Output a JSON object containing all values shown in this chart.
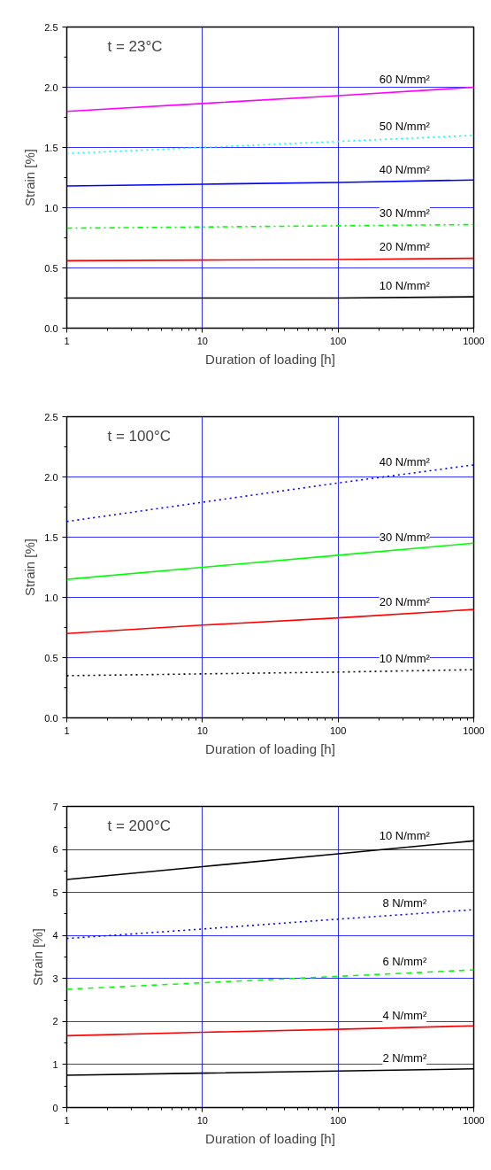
{
  "chart_data": [
    {
      "type": "line",
      "xlabel": "Duration of loading [h]",
      "ylabel": "Strain [%]",
      "annotations": [
        "t = 23°C"
      ],
      "log": "x",
      "grid": true,
      "x": [
        1,
        10,
        100,
        1000
      ],
      "xlim": [
        1,
        1000
      ],
      "xticks": [
        1,
        10,
        100,
        1000
      ],
      "ylim": [
        0,
        2.5
      ],
      "yticks": [
        {
          "value": 0,
          "label": "0.0"
        },
        {
          "value": 0.5,
          "label": "0.5"
        },
        {
          "value": 1,
          "label": "1.0"
        },
        {
          "value": 1.5,
          "label": "1.5"
        },
        {
          "value": 2,
          "label": "2.0"
        },
        {
          "value": 2.5,
          "label": "2.5"
        }
      ],
      "series": [
        {
          "name": "60 N/mm²",
          "color": "#ff00ff",
          "line_style": "solid",
          "values": [
            1.8,
            1.865,
            1.93,
            2.0
          ]
        },
        {
          "name": "50 N/mm²",
          "color": "#00ffff",
          "line_style": "dotted",
          "values": [
            1.45,
            1.5,
            1.55,
            1.6
          ]
        },
        {
          "name": "40 N/mm²",
          "color": "#0000ff",
          "line_style": "solid",
          "values": [
            1.18,
            1.195,
            1.21,
            1.23
          ]
        },
        {
          "name": "30 N/mm²",
          "color": "#00ff00",
          "line_style": "dashdot",
          "values": [
            0.83,
            0.84,
            0.85,
            0.86
          ]
        },
        {
          "name": "20 N/mm²",
          "color": "#ff0000",
          "line_style": "solid",
          "values": [
            0.56,
            0.565,
            0.57,
            0.58
          ]
        },
        {
          "name": "10 N/mm²",
          "color": "#000000",
          "line_style": "solid",
          "values": [
            0.25,
            0.25,
            0.25,
            0.26
          ]
        }
      ]
    },
    {
      "type": "line",
      "xlabel": "Duration of loading [h]",
      "ylabel": "Strain [%]",
      "annotations": [
        "t = 100°C"
      ],
      "log": "x",
      "grid": true,
      "x": [
        1,
        10,
        100,
        1000
      ],
      "xlim": [
        1,
        1000
      ],
      "xticks": [
        1,
        10,
        100,
        1000
      ],
      "ylim": [
        0,
        2.5
      ],
      "yticks": [
        {
          "value": 0,
          "label": "0.0"
        },
        {
          "value": 0.5,
          "label": "0.5"
        },
        {
          "value": 1,
          "label": "1.0"
        },
        {
          "value": 1.5,
          "label": "1.5"
        },
        {
          "value": 2,
          "label": "2.0"
        },
        {
          "value": 2.5,
          "label": "2.5"
        }
      ],
      "series": [
        {
          "name": "40 N/mm²",
          "color": "#0000ff",
          "line_style": "dotted",
          "values": [
            1.63,
            1.79,
            1.95,
            2.1
          ]
        },
        {
          "name": "30 N/mm²",
          "color": "#00ff00",
          "line_style": "solid",
          "values": [
            1.15,
            1.25,
            1.35,
            1.45
          ]
        },
        {
          "name": "20 N/mm²",
          "color": "#ff0000",
          "line_style": "solid",
          "values": [
            0.7,
            0.77,
            0.83,
            0.9
          ]
        },
        {
          "name": "10 N/mm²",
          "color": "#000000",
          "line_style": "dotted",
          "values": [
            0.35,
            0.365,
            0.38,
            0.4
          ]
        }
      ]
    },
    {
      "type": "line",
      "xlabel": "Duration of loading [h]",
      "ylabel": "Strain [%]",
      "annotations": [
        "t = 200°C"
      ],
      "log": "x",
      "grid": true,
      "x": [
        1,
        10,
        100,
        1000
      ],
      "xlim": [
        1,
        1000
      ],
      "xticks": [
        1,
        10,
        100,
        1000
      ],
      "ylim": [
        0,
        7
      ],
      "yticks": [
        0,
        1,
        2,
        3,
        4,
        5,
        6,
        7
      ],
      "series": [
        {
          "name": "10 N/mm²",
          "color": "#000000",
          "line_style": "solid",
          "values": [
            5.3,
            5.6,
            5.9,
            6.2
          ]
        },
        {
          "name": "8 N/mm²",
          "color": "#0000ff",
          "line_style": "dotted",
          "values": [
            3.93,
            4.15,
            4.38,
            4.6
          ]
        },
        {
          "name": "6 N/mm²",
          "color": "#00ff00",
          "line_style": "dashed",
          "values": [
            2.75,
            2.9,
            3.05,
            3.2
          ]
        },
        {
          "name": "4 N/mm²",
          "color": "#ff0000",
          "line_style": "solid",
          "values": [
            1.67,
            1.75,
            1.82,
            1.9
          ]
        },
        {
          "name": "2 N/mm²",
          "color": "#000000",
          "line_style": "solid",
          "values": [
            0.75,
            0.8,
            0.85,
            0.9
          ]
        }
      ]
    }
  ]
}
